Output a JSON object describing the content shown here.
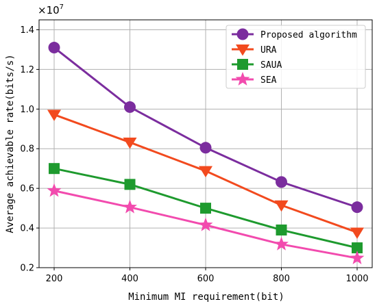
{
  "chart_data": {
    "type": "line",
    "x": [
      200,
      400,
      600,
      800,
      1000
    ],
    "series": [
      {
        "name": "Proposed algorithm",
        "values": [
          1.31,
          1.01,
          0.805,
          0.632,
          0.505
        ],
        "color": "#7B2D9E",
        "marker": "circle"
      },
      {
        "name": "URA",
        "values": [
          0.972,
          0.832,
          0.688,
          0.515,
          0.378
        ],
        "color": "#F24A1E",
        "marker": "triangle-down"
      },
      {
        "name": "SAUA",
        "values": [
          0.7,
          0.62,
          0.5,
          0.39,
          0.3
        ],
        "color": "#1E9A2E",
        "marker": "square"
      },
      {
        "name": "SEA",
        "values": [
          0.588,
          0.505,
          0.415,
          0.318,
          0.248
        ],
        "color": "#F24BAE",
        "marker": "star"
      }
    ],
    "xlabel": "Minimum MI requirement(bit)",
    "ylabel": "Average achievable rate(bits/s)",
    "y_multiplier": "×10",
    "y_multiplier_exp": "7",
    "xlim": [
      200,
      1000
    ],
    "ylim": [
      0.2,
      1.45
    ],
    "xticks": [
      200,
      400,
      600,
      800,
      1000
    ],
    "yticks": [
      0.2,
      0.4,
      0.6,
      0.8,
      1.0,
      1.2,
      1.4
    ],
    "ytick_labels": [
      "0.2",
      "0.4",
      "0.6",
      "0.8",
      "1.0",
      "1.2",
      "1.4"
    ],
    "grid": true,
    "legend_position": "top-right"
  }
}
